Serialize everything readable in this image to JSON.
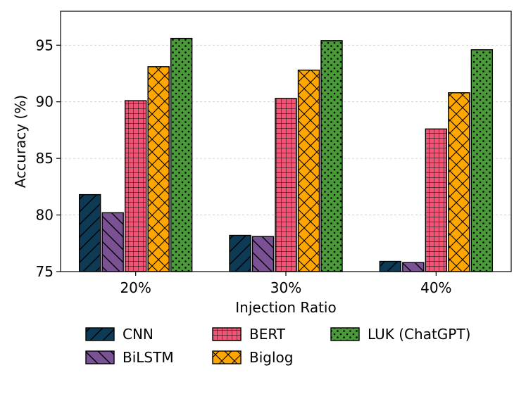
{
  "chart_data": {
    "type": "bar",
    "title": "",
    "xlabel": "Injection Ratio",
    "ylabel": "Accuracy (%)",
    "categories": [
      "20%",
      "30%",
      "40%"
    ],
    "ylim": [
      75,
      98
    ],
    "yticks": [
      "75",
      "80",
      "85",
      "90",
      "95"
    ],
    "grid": "horizontal dashed",
    "legend_position": "bottom",
    "series": [
      {
        "name": "CNN",
        "values": [
          81.8,
          78.2,
          75.9
        ],
        "color": "#0d3b56",
        "hatch": "diagonal-forward"
      },
      {
        "name": "BiLSTM",
        "values": [
          80.2,
          78.1,
          75.8
        ],
        "color": "#7a5195",
        "hatch": "diagonal-back"
      },
      {
        "name": "BERT",
        "values": [
          90.1,
          90.3,
          87.6
        ],
        "color": "#ef5675",
        "hatch": "grid"
      },
      {
        "name": "Biglog",
        "values": [
          93.1,
          92.8,
          90.8
        ],
        "color": "#ffa600",
        "hatch": "cross"
      },
      {
        "name": "LUK (ChatGPT)",
        "values": [
          95.6,
          95.4,
          94.6
        ],
        "color": "#4a9a3a",
        "hatch": "dots"
      }
    ]
  }
}
